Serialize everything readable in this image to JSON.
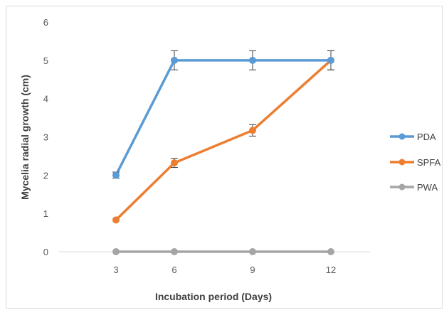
{
  "chart_data": {
    "type": "line",
    "title": "",
    "xlabel": "Incubation period (Days)",
    "ylabel": "Mycelia radial growth (cm)",
    "categories": [
      "3",
      "6",
      "9",
      "12"
    ],
    "ylim": [
      0,
      6
    ],
    "yticks": [
      "0",
      "1",
      "2",
      "3",
      "4",
      "5",
      "6"
    ],
    "grid": false,
    "legend_position": "right",
    "error_bars": true,
    "series": [
      {
        "name": "PDA",
        "color": "#5b9bd5",
        "values": [
          2.0,
          5.0,
          5.0,
          5.0
        ],
        "errors": [
          0.08,
          0.25,
          0.25,
          0.25
        ]
      },
      {
        "name": "SPFA",
        "color": "#ed7d31",
        "values": [
          0.83,
          2.32,
          3.17,
          5.0
        ],
        "errors": [
          0.0,
          0.12,
          0.15,
          0.25
        ]
      },
      {
        "name": "PWA",
        "color": "#a5a5a5",
        "values": [
          0,
          0,
          0,
          0
        ],
        "errors": [
          0,
          0,
          0,
          0
        ]
      }
    ]
  }
}
